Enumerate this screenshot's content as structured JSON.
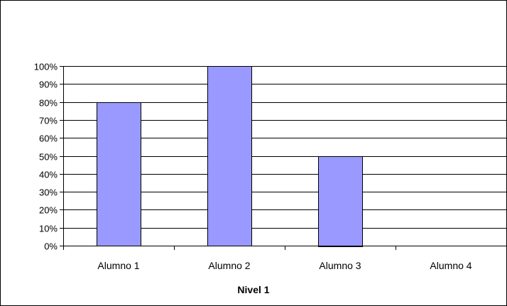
{
  "chart_data": {
    "type": "bar",
    "title": "",
    "xlabel": "Nivel 1",
    "ylabel": "",
    "categories": [
      "Alumno 1",
      "Alumno 2",
      "Alumno 3",
      "Alumno 4"
    ],
    "values": [
      80,
      100,
      50,
      0
    ],
    "ylim": [
      0,
      100
    ],
    "yticks": [
      0,
      10,
      20,
      30,
      40,
      50,
      60,
      70,
      80,
      90,
      100
    ],
    "ytick_labels": [
      "0%",
      "10%",
      "20%",
      "30%",
      "40%",
      "50%",
      "60%",
      "70%",
      "80%",
      "90%",
      "100%"
    ],
    "grid": true,
    "legend": "none",
    "colors": {
      "bar_fill": "#9999ff",
      "bar_stroke": "#000000",
      "gridline": "#000000",
      "frame": "#000000"
    }
  }
}
